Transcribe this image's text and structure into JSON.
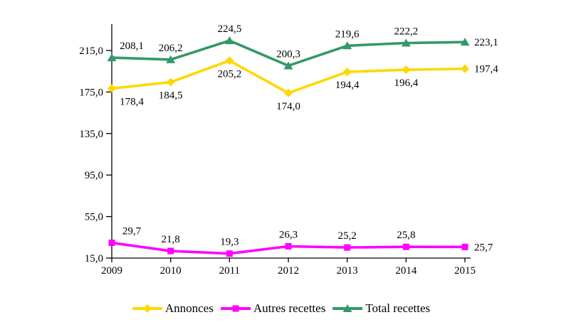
{
  "chart_data": {
    "type": "line",
    "title": "",
    "xlabel": "",
    "ylabel": "",
    "x": [
      2009,
      2010,
      2011,
      2012,
      2013,
      2014,
      2015
    ],
    "series": [
      {
        "name": "Annonces",
        "color": "#FFD700",
        "marker": "diamond",
        "values": [
          178.4,
          184.5,
          205.2,
          174.0,
          194.4,
          196.4,
          197.4
        ],
        "label_position": "below"
      },
      {
        "name": "Autres recettes",
        "color": "#FF00FF",
        "marker": "square",
        "values": [
          29.7,
          21.8,
          19.3,
          26.3,
          25.2,
          25.8,
          25.7
        ],
        "label_position": "above"
      },
      {
        "name": "Total recettes",
        "color": "#339966",
        "marker": "triangle",
        "values": [
          208.1,
          206.2,
          224.5,
          200.3,
          219.6,
          222.2,
          223.1
        ],
        "label_position": "above"
      }
    ],
    "ylim": [
      15,
      215
    ],
    "yticks": [
      15,
      55,
      95,
      135,
      175,
      215
    ],
    "decimal_separator": ",",
    "grid": false,
    "legend_position": "bottom",
    "axis_color": "#000000",
    "background_color": "#FFFFFF"
  }
}
